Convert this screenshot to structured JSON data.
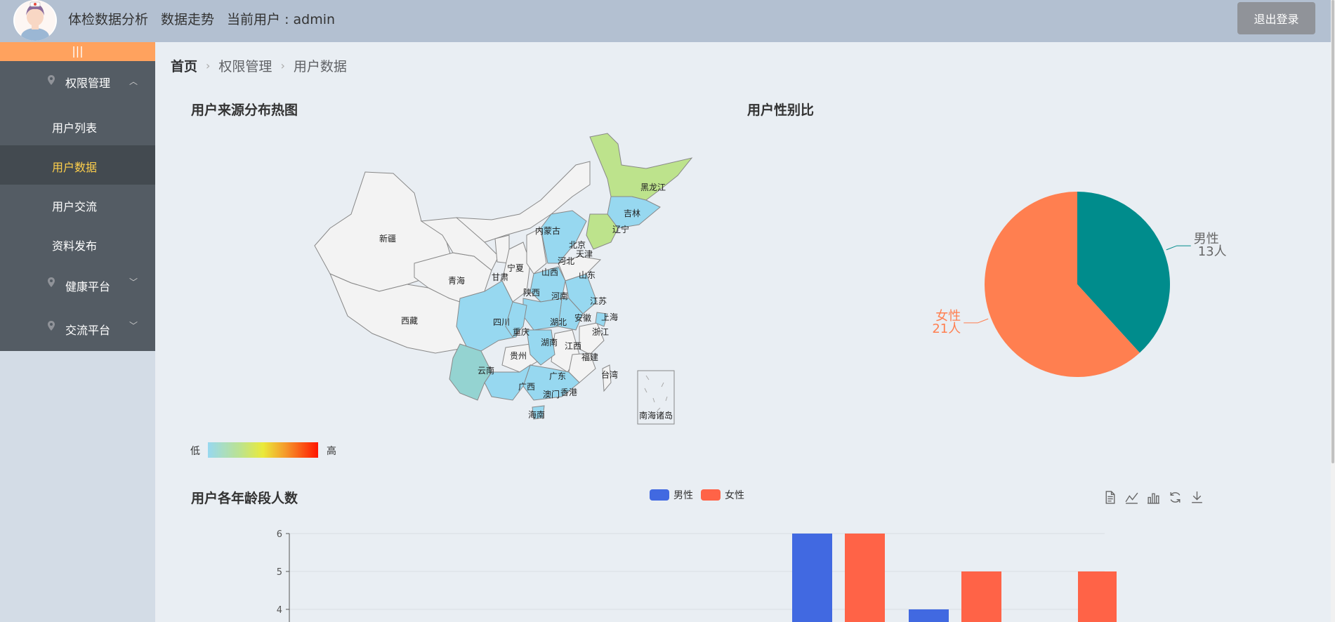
{
  "header": {
    "nav": [
      "体检数据分析",
      "数据走势",
      "当前用户 : admin"
    ],
    "logout_label": "退出登录"
  },
  "sidebar": {
    "collapse_label": "|||",
    "groups": [
      {
        "label": "权限管理",
        "expanded": true,
        "items": [
          {
            "label": "用户列表",
            "active": false
          },
          {
            "label": "用户数据",
            "active": true
          },
          {
            "label": "用户交流",
            "active": false
          },
          {
            "label": "资料发布",
            "active": false
          }
        ]
      },
      {
        "label": "健康平台",
        "expanded": false
      },
      {
        "label": "交流平台",
        "expanded": false
      }
    ]
  },
  "breadcrumb": [
    "首页",
    "权限管理",
    "用户数据"
  ],
  "map_section": {
    "title": "用户来源分布热图",
    "visual_map": {
      "low": "低",
      "high": "高"
    },
    "province_labels": [
      "黑龙江",
      "吉林",
      "辽宁",
      "内蒙古",
      "北京",
      "天津",
      "河北",
      "新疆",
      "青海",
      "甘肃",
      "宁夏",
      "山西",
      "山东",
      "陕西",
      "河南",
      "江苏",
      "四川",
      "重庆",
      "湖北",
      "安徽",
      "上海",
      "西藏",
      "贵州",
      "湖南",
      "江西",
      "浙江",
      "福建",
      "云南",
      "广西",
      "广东",
      "台湾",
      "香港",
      "澳门",
      "海南",
      "南海诸岛"
    ],
    "colors": {
      "none": "#f3f3f3",
      "low": "#97d8f0",
      "mid_low": "#bde38c",
      "teal": "#94d3d1"
    }
  },
  "gender_section": {
    "title": "用户性别比"
  },
  "chart_data": [
    {
      "type": "pie",
      "labels": [
        "男性",
        "女性"
      ],
      "values": [
        13,
        21
      ],
      "data_labels": [
        "13人",
        "21人"
      ],
      "colors": [
        "#008c8c",
        "#ff7f50"
      ]
    },
    {
      "type": "bar",
      "title": "用户各年龄段人数",
      "legend": "top-center",
      "series": [
        {
          "name": "男性",
          "color": "#4169e1",
          "values": [
            null,
            null,
            null,
            6,
            4,
            null,
            null,
            null
          ]
        },
        {
          "name": "女性",
          "color": "#ff6347",
          "values": [
            null,
            null,
            null,
            6,
            5,
            5,
            null,
            null
          ]
        }
      ],
      "y_ticks": [
        "6",
        "5",
        "4"
      ],
      "ylim_visible": [
        4,
        6
      ],
      "grid": true
    }
  ],
  "bar_toolbox": [
    "data-view-icon",
    "line-chart-icon",
    "bar-chart-icon",
    "restore-icon",
    "save-image-icon"
  ]
}
